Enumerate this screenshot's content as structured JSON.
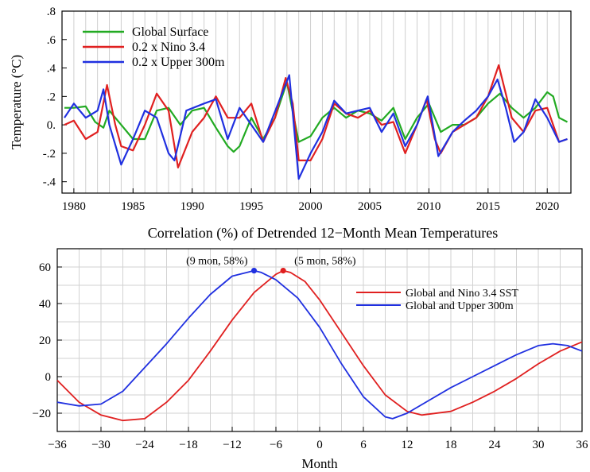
{
  "chart_data": [
    {
      "type": "line",
      "ylabel": "Temperature (°C)",
      "xlim": [
        1979,
        2022
      ],
      "ylim": [
        -0.48,
        0.8
      ],
      "x_ticks": [
        1980,
        1985,
        1990,
        1995,
        2000,
        2005,
        2010,
        2015,
        2020
      ],
      "y_ticks": [
        -0.4,
        -0.2,
        0,
        0.2,
        0.4,
        0.6,
        0.8
      ],
      "y_tick_labels": [
        "-.4",
        "-.2",
        "0.",
        ".2",
        ".4",
        ".6",
        ".8"
      ],
      "grid": "vertical",
      "legend_position": "top-left",
      "series": [
        {
          "name": "Global Surface",
          "color": "#22aa22",
          "x": [
            1979.2,
            1980,
            1981,
            1981.8,
            1982.5,
            1983,
            1984,
            1985,
            1986,
            1987,
            1988,
            1989,
            1990,
            1991,
            1992,
            1993,
            1993.5,
            1994,
            1995,
            1996,
            1997,
            1998,
            1999,
            2000,
            2001,
            2002,
            2003,
            2004,
            2005,
            2006,
            2007,
            2008,
            2009,
            2010,
            2011,
            2012,
            2013,
            2014,
            2015,
            2016,
            2017,
            2018,
            2019,
            2020,
            2020.5,
            2021,
            2021.7
          ],
          "y": [
            0.12,
            0.12,
            0.13,
            0.02,
            -0.02,
            0.1,
            0.0,
            -0.1,
            -0.1,
            0.1,
            0.12,
            0.0,
            0.1,
            0.12,
            -0.02,
            -0.15,
            -0.19,
            -0.15,
            0.05,
            -0.1,
            0.05,
            0.3,
            -0.12,
            -0.08,
            0.05,
            0.12,
            0.05,
            0.1,
            0.08,
            0.03,
            0.12,
            -0.1,
            0.05,
            0.15,
            -0.05,
            0.0,
            0.0,
            0.05,
            0.15,
            0.22,
            0.12,
            0.05,
            0.12,
            0.23,
            0.2,
            0.05,
            0.02
          ]
        },
        {
          "name": "0.2 x Nino 3.4",
          "color": "#e02020",
          "x": [
            1979.2,
            1980,
            1981,
            1982,
            1982.8,
            1983.5,
            1984,
            1985,
            1986,
            1987,
            1988,
            1988.8,
            1990,
            1991,
            1992,
            1993,
            1994,
            1995,
            1996,
            1997,
            1997.9,
            1998.5,
            1999,
            2000,
            2001,
            2002,
            2003,
            2004,
            2005,
            2006,
            2007,
            2008,
            2009,
            2009.8,
            2010.5,
            2011,
            2012,
            2013,
            2014,
            2015,
            2015.9,
            2017,
            2018,
            2019,
            2020,
            2021,
            2021.7
          ],
          "y": [
            0.0,
            0.03,
            -0.1,
            -0.05,
            0.28,
            0.0,
            -0.15,
            -0.18,
            0.0,
            0.22,
            0.1,
            -0.3,
            -0.05,
            0.05,
            0.2,
            0.05,
            0.05,
            0.15,
            -0.12,
            0.05,
            0.33,
            0.15,
            -0.25,
            -0.25,
            -0.1,
            0.15,
            0.08,
            0.05,
            0.1,
            0.0,
            0.02,
            -0.2,
            0.0,
            0.18,
            -0.1,
            -0.2,
            -0.05,
            0.0,
            0.05,
            0.2,
            0.42,
            0.05,
            -0.05,
            0.1,
            0.12,
            -0.12,
            -0.1
          ]
        },
        {
          "name": "0.2 x Upper 300m",
          "color": "#2030e0",
          "x": [
            1979.2,
            1980,
            1981,
            1982,
            1982.5,
            1983,
            1984,
            1985,
            1986,
            1987,
            1988,
            1988.5,
            1989.5,
            1991,
            1992,
            1993,
            1994,
            1995,
            1996,
            1997.5,
            1998.2,
            1999,
            2000,
            2001,
            2002,
            2003,
            2004,
            2005,
            2006,
            2007,
            2008,
            2009,
            2009.9,
            2010.8,
            2012,
            2013,
            2014,
            2015,
            2015.8,
            2016.5,
            2017.2,
            2018,
            2019,
            2020,
            2021,
            2021.7
          ],
          "y": [
            0.05,
            0.15,
            0.05,
            0.1,
            0.25,
            0.0,
            -0.28,
            -0.1,
            0.1,
            0.05,
            -0.2,
            -0.25,
            0.1,
            0.15,
            0.18,
            -0.1,
            0.12,
            0.0,
            -0.12,
            0.2,
            0.35,
            -0.38,
            -0.2,
            -0.05,
            0.17,
            0.08,
            0.1,
            0.12,
            -0.05,
            0.08,
            -0.15,
            0.0,
            0.2,
            -0.22,
            -0.05,
            0.03,
            0.1,
            0.2,
            0.32,
            0.12,
            -0.12,
            -0.05,
            0.18,
            0.05,
            -0.12,
            -0.1
          ]
        }
      ]
    },
    {
      "type": "line",
      "title": "Correlation (%) of Detrended 12−Month Mean Temperatures",
      "xlabel": "Month",
      "xlim": [
        -36,
        36
      ],
      "ylim": [
        -30,
        70
      ],
      "x_ticks": [
        -36,
        -30,
        -24,
        -18,
        -12,
        -6,
        0,
        6,
        12,
        18,
        24,
        30,
        36
      ],
      "y_ticks": [
        -20,
        0,
        20,
        40,
        60
      ],
      "grid": "both",
      "legend_position": "right",
      "series": [
        {
          "name": "Global and Nino 3.4 SST",
          "color": "#e02020",
          "x": [
            -36,
            -33,
            -30,
            -27,
            -24,
            -21,
            -18,
            -15,
            -12,
            -9,
            -6,
            -5,
            -4,
            -2,
            0,
            3,
            6,
            9,
            12,
            14,
            18,
            21,
            24,
            27,
            30,
            33,
            36
          ],
          "y": [
            -2,
            -14,
            -21,
            -24,
            -23,
            -14,
            -2,
            14,
            31,
            46,
            56,
            58,
            57,
            52,
            42,
            24,
            6,
            -10,
            -19,
            -21,
            -19,
            -14,
            -8,
            -1,
            7,
            14,
            19
          ]
        },
        {
          "name": "Global and Upper 300m",
          "color": "#2030e0",
          "x": [
            -36,
            -33,
            -30,
            -27,
            -24,
            -21,
            -18,
            -15,
            -12,
            -9,
            -8,
            -6,
            -3,
            0,
            3,
            6,
            9,
            10,
            12,
            15,
            18,
            21,
            24,
            27,
            30,
            32,
            34,
            36
          ],
          "y": [
            -14,
            -16,
            -15,
            -8,
            5,
            18,
            32,
            45,
            55,
            58,
            57,
            53,
            43,
            27,
            7,
            -11,
            -22,
            -23,
            -20,
            -13,
            -6,
            0,
            6,
            12,
            17,
            18,
            17,
            14
          ]
        }
      ],
      "annotations": [
        {
          "text": "(9 mon, 58%)",
          "x": -9,
          "y": 58,
          "color": "#2030e0"
        },
        {
          "text": "(5 mon, 58%)",
          "x": -5,
          "y": 58,
          "color": "#e02020"
        }
      ]
    }
  ]
}
